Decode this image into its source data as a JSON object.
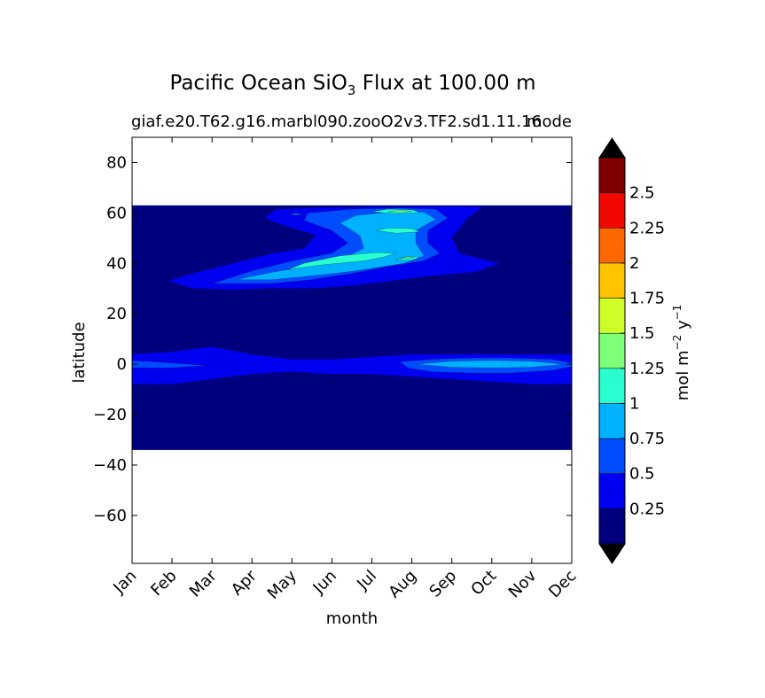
{
  "figure": {
    "title_prefix": "Pacific Ocean SiO",
    "title_subscript": "3",
    "title_suffix": " Flux at 100.00 m",
    "subtitle_left": "giaf.e20.T62.g16.marbl090.zooO2v3.TF2.sd1.11.16",
    "subtitle_right": "mode"
  },
  "chart_data": {
    "type": "heatmap",
    "title": "Pacific Ocean SiO3 Flux at 100.00 m",
    "subtitle": "giaf.e20.T62.g16.marbl090.zooO2v3.TF2.sd1.11.16 mode",
    "xlabel": "month",
    "ylabel": "latitude",
    "x_ticks": [
      "Jan",
      "Feb",
      "Mar",
      "Apr",
      "May",
      "Jun",
      "Jul",
      "Aug",
      "Sep",
      "Oct",
      "Nov",
      "Dec"
    ],
    "y_ticks": [
      80,
      60,
      40,
      20,
      0,
      -20,
      -40,
      -60
    ],
    "y_tick_labels": [
      "80",
      "60",
      "40",
      "20",
      "0",
      "−20",
      "−40",
      "−60"
    ],
    "ylim": [
      -79,
      90
    ],
    "xlim": [
      0,
      11
    ],
    "data_lat_range": [
      -34,
      63
    ],
    "colorbar": {
      "label_main": "mol m",
      "label_exp1": "−2",
      "label_unit2": " y",
      "label_exp2": "−1",
      "levels": [
        0,
        0.25,
        0.5,
        0.75,
        1,
        1.25,
        1.5,
        1.75,
        2,
        2.25,
        2.5,
        2.75
      ],
      "tick_values": [
        0.25,
        0.5,
        0.75,
        1,
        1.25,
        1.5,
        1.75,
        2,
        2.25,
        2.5
      ],
      "tick_labels": [
        "0.25",
        "0.5",
        "0.75",
        "1",
        "1.25",
        "1.5",
        "1.75",
        "2",
        "2.25",
        "2.5"
      ],
      "colors": [
        "#00007f",
        "#0000f1",
        "#004dff",
        "#00b1ff",
        "#29ffce",
        "#7dff7a",
        "#ceff29",
        "#ffc400",
        "#ff6800",
        "#f10800",
        "#7f0000"
      ],
      "extend": "both",
      "extend_color": "#000000"
    },
    "regions": [
      {
        "level": 1,
        "points": [
          [
            0,
            4
          ],
          [
            1,
            5
          ],
          [
            2,
            7
          ],
          [
            3,
            4
          ],
          [
            4,
            2
          ],
          [
            5,
            2
          ],
          [
            6,
            3
          ],
          [
            7,
            4
          ],
          [
            8,
            4
          ],
          [
            9,
            4
          ],
          [
            10,
            4
          ],
          [
            11,
            4
          ],
          [
            11,
            -8
          ],
          [
            10,
            -8
          ],
          [
            9,
            -7
          ],
          [
            8,
            -6
          ],
          [
            7,
            -5
          ],
          [
            6,
            -4
          ],
          [
            5,
            -4
          ],
          [
            4,
            -3
          ],
          [
            3,
            -4
          ],
          [
            2,
            -6
          ],
          [
            1,
            -8
          ],
          [
            0,
            -8
          ]
        ]
      },
      {
        "level": 2,
        "points": [
          [
            0,
            1.5
          ],
          [
            1,
            0.5
          ],
          [
            1.9,
            -0.5
          ],
          [
            1,
            -1.5
          ],
          [
            0,
            -1.5
          ]
        ]
      },
      {
        "level": 2,
        "points": [
          [
            6.7,
            1
          ],
          [
            7.5,
            2
          ],
          [
            8.5,
            2.5
          ],
          [
            9.5,
            2.5
          ],
          [
            10.5,
            2
          ],
          [
            11,
            0.5
          ],
          [
            11,
            -1
          ],
          [
            10.5,
            -2.5
          ],
          [
            9.5,
            -3.5
          ],
          [
            8.5,
            -3.5
          ],
          [
            7.5,
            -3
          ],
          [
            6.9,
            -1.5
          ]
        ]
      },
      {
        "level": 3,
        "points": [
          [
            7.1,
            0
          ],
          [
            8,
            1.2
          ],
          [
            9,
            1.5
          ],
          [
            10,
            1.2
          ],
          [
            10.8,
            0
          ],
          [
            10,
            -1.2
          ],
          [
            9,
            -1.5
          ],
          [
            8,
            -1.2
          ]
        ]
      },
      {
        "level": 1,
        "points": [
          [
            0.9,
            33
          ],
          [
            1.5,
            36
          ],
          [
            2.5,
            40
          ],
          [
            3.5,
            44
          ],
          [
            4.3,
            46
          ],
          [
            4.6,
            51
          ],
          [
            3.8,
            55
          ],
          [
            3.3,
            58
          ],
          [
            3.6,
            61.5
          ],
          [
            4.8,
            62.2
          ],
          [
            6,
            62.5
          ],
          [
            7,
            62.7
          ],
          [
            8,
            62.7
          ],
          [
            8.8,
            62.5
          ],
          [
            8.4,
            58
          ],
          [
            8,
            50
          ],
          [
            8.2,
            44
          ],
          [
            9.2,
            40
          ],
          [
            8.6,
            36.5
          ],
          [
            7.5,
            35
          ],
          [
            6.5,
            33
          ],
          [
            5.5,
            31
          ],
          [
            4.5,
            30
          ],
          [
            3.5,
            30
          ],
          [
            2.5,
            29.5
          ],
          [
            1.5,
            30
          ]
        ]
      },
      {
        "level": 2,
        "points": [
          [
            2,
            32
          ],
          [
            3,
            37
          ],
          [
            4,
            41
          ],
          [
            5,
            44
          ],
          [
            5.4,
            48
          ],
          [
            5,
            53
          ],
          [
            4.3,
            57
          ],
          [
            4.4,
            60
          ],
          [
            5.5,
            61.5
          ],
          [
            6.7,
            62
          ],
          [
            7.6,
            61.5
          ],
          [
            7.9,
            58
          ],
          [
            7.4,
            53
          ],
          [
            7.4,
            48
          ],
          [
            7.7,
            44
          ],
          [
            7.3,
            41
          ],
          [
            6.5,
            39
          ],
          [
            5.5,
            36
          ],
          [
            4.5,
            33.5
          ],
          [
            3.5,
            32
          ]
        ]
      },
      {
        "level": 3,
        "points": [
          [
            2.6,
            33.5
          ],
          [
            3.5,
            36.5
          ],
          [
            4.5,
            39
          ],
          [
            5.3,
            42
          ],
          [
            5.8,
            46
          ],
          [
            5.7,
            51
          ],
          [
            5.2,
            56
          ],
          [
            5.6,
            59
          ],
          [
            6.5,
            60.5
          ],
          [
            7.3,
            60.3
          ],
          [
            7.6,
            57.5
          ],
          [
            7.1,
            53
          ],
          [
            7.1,
            48
          ],
          [
            7.3,
            43
          ],
          [
            6.8,
            40
          ],
          [
            5.6,
            37
          ],
          [
            4.5,
            35
          ],
          [
            3.5,
            33.5
          ]
        ]
      },
      {
        "level": 4,
        "points": [
          [
            3.9,
            37.5
          ],
          [
            4.8,
            39.5
          ],
          [
            5.8,
            41
          ],
          [
            6.3,
            42.5
          ],
          [
            6.6,
            44
          ],
          [
            6.1,
            44.3
          ],
          [
            5.2,
            43
          ],
          [
            4.3,
            40
          ]
        ]
      },
      {
        "level": 4,
        "points": [
          [
            6,
            60.5
          ],
          [
            6.4,
            61.5
          ],
          [
            7,
            61.3
          ],
          [
            7.2,
            60.2
          ],
          [
            6.6,
            59.7
          ]
        ]
      },
      {
        "level": 4,
        "points": [
          [
            6.1,
            53
          ],
          [
            6.4,
            54
          ],
          [
            7,
            53.8
          ],
          [
            7.2,
            52.5
          ],
          [
            6.6,
            52
          ]
        ]
      },
      {
        "level": 4,
        "points": [
          [
            6.6,
            41.5
          ],
          [
            6.9,
            42.8
          ],
          [
            7.2,
            42.4
          ],
          [
            7,
            41.2
          ]
        ]
      },
      {
        "level": 5,
        "points": [
          [
            6.7,
            42
          ],
          [
            6.9,
            42.6
          ],
          [
            7.05,
            42.2
          ]
        ]
      },
      {
        "level": 5,
        "points": [
          [
            6.4,
            60.5
          ],
          [
            6.7,
            61
          ],
          [
            7,
            60.7
          ],
          [
            6.8,
            60.3
          ]
        ]
      },
      {
        "level": 4,
        "points": [
          [
            3.9,
            59.3
          ],
          [
            4.1,
            59.7
          ],
          [
            4.3,
            59.3
          ]
        ]
      }
    ]
  }
}
